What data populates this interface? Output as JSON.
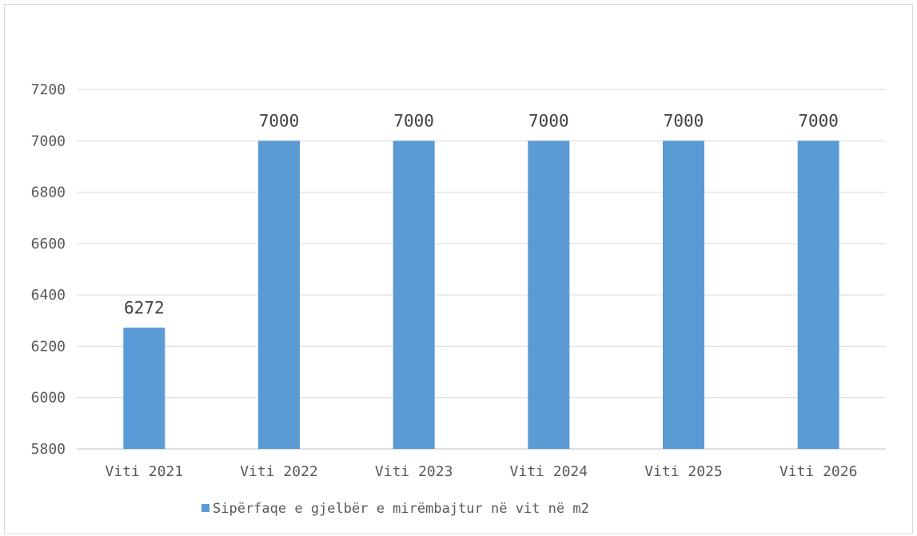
{
  "chart_data": {
    "type": "bar",
    "title": "",
    "xlabel": "",
    "ylabel": "",
    "categories": [
      "Viti 2021",
      "Viti 2022",
      "Viti 2023",
      "Viti 2024",
      "Viti 2025",
      "Viti 2026"
    ],
    "series": [
      {
        "name": "Sipërfaqe e gjelbër e mirëmbajtur në vit në m2",
        "values": [
          6272,
          7000,
          7000,
          7000,
          7000,
          7000
        ],
        "color": "#5b9bd5"
      }
    ],
    "ylim": [
      5800,
      7200
    ],
    "yticks": [
      "5800",
      "6000",
      "6200",
      "6400",
      "6600",
      "6800",
      "7000",
      "7200"
    ],
    "data_labels": [
      "6272",
      "7000",
      "7000",
      "7000",
      "7000",
      "7000"
    ],
    "grid": true,
    "legend_position": "bottom"
  }
}
